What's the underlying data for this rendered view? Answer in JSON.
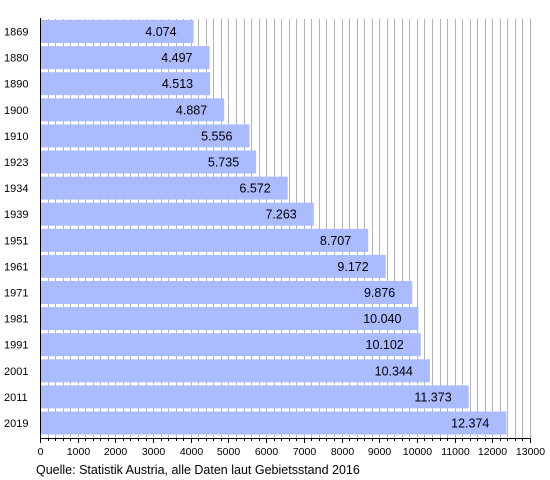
{
  "chart_data": {
    "type": "bar",
    "orientation": "horizontal",
    "categories": [
      "1869",
      "1880",
      "1890",
      "1900",
      "1910",
      "1923",
      "1934",
      "1939",
      "1951",
      "1961",
      "1971",
      "1981",
      "1991",
      "2001",
      "2011",
      "2019"
    ],
    "values": [
      4074,
      4497,
      4513,
      4887,
      5556,
      5735,
      6572,
      7263,
      8707,
      9172,
      9876,
      10040,
      10102,
      10344,
      11373,
      12374
    ],
    "value_labels": [
      "4.074",
      "4.497",
      "4.513",
      "4.887",
      "5.556",
      "5.735",
      "6.572",
      "7.263",
      "8.707",
      "9.172",
      "9.876",
      "10.040",
      "10.102",
      "10.344",
      "11.373",
      "12.374"
    ],
    "xlim": [
      0,
      13000
    ],
    "x_ticks": [
      0,
      1000,
      2000,
      3000,
      4000,
      5000,
      6000,
      7000,
      8000,
      9000,
      10000,
      11000,
      12000,
      13000
    ],
    "x_tick_labels": [
      "0",
      "1000",
      "2000",
      "3000",
      "4000",
      "5000",
      "6000",
      "7000",
      "8000",
      "9000",
      "10000",
      "11000",
      "12000",
      "13000"
    ],
    "grid": true,
    "bar_color": "#aabbff",
    "source": "Quelle: Statistik Austria, alle Daten laut Gebietsstand 2016"
  }
}
